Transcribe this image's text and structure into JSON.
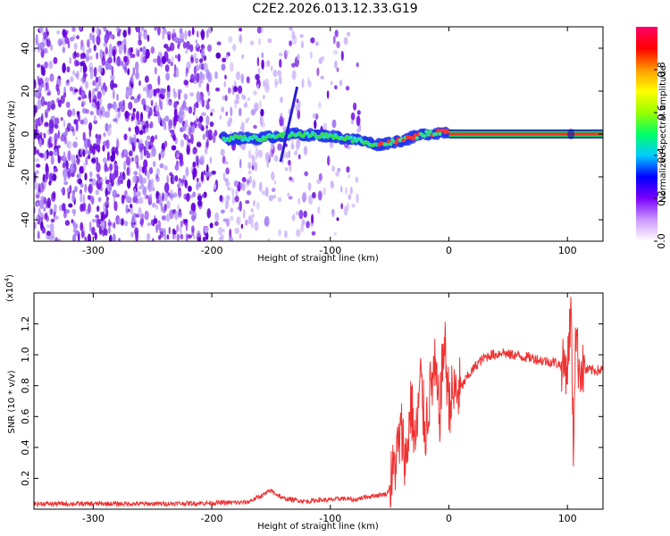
{
  "title": "C2E2.2026.013.12.33.G19",
  "colors": {
    "spectrogram_noise": "#7b2cf0",
    "snr_line": "#ee3333",
    "center_line_core": "#ff2a2a",
    "center_line_halo": "#00dd55"
  },
  "chart_data": [
    {
      "type": "heatmap",
      "name": "spectrogram",
      "xlabel": "Height of straight line (km)",
      "ylabel": "Frequency (Hz)",
      "xlim": [
        -350,
        130
      ],
      "ylim": [
        -50,
        50
      ],
      "xticks": [
        -300,
        -200,
        -100,
        0,
        100
      ],
      "xtick_labels": [
        "-300",
        "-200",
        "-100",
        "0",
        "100"
      ],
      "yticks": [
        -40,
        -20,
        0,
        20,
        40
      ],
      "ytick_labels": [
        "-40",
        "-20",
        "0",
        "20",
        "40"
      ],
      "features": {
        "noise_fades_out_at_km": -80,
        "signal_track": [
          {
            "x": -190,
            "y": -2
          },
          {
            "x": -160,
            "y": -2
          },
          {
            "x": -130,
            "y": 0
          },
          {
            "x": -100,
            "y": -1
          },
          {
            "x": -75,
            "y": -3
          },
          {
            "x": -60,
            "y": -5
          },
          {
            "x": -40,
            "y": -3
          },
          {
            "x": -20,
            "y": 0
          },
          {
            "x": 0,
            "y": 1
          },
          {
            "x": 130,
            "y": 0
          }
        ],
        "diagonal_streak": {
          "x_start": -142,
          "x_end": -128,
          "y_start": -13,
          "y_end": 22
        }
      },
      "colorbar": {
        "label": "Normalized spectral amplitude",
        "range": [
          0,
          1
        ],
        "ticks": [
          0.0,
          0.2,
          0.4,
          0.6,
          0.8
        ],
        "tick_labels": [
          "0.0",
          "0.2",
          "0.4",
          "0.6",
          "0.8"
        ],
        "stops": [
          "#ffffff",
          "#cc99ff",
          "#7a00ff",
          "#0000ff",
          "#00ccff",
          "#00ff66",
          "#99ff00",
          "#ffff00",
          "#ff9900",
          "#ff0000",
          "#ff0066"
        ]
      }
    },
    {
      "type": "line",
      "name": "snr",
      "xlabel": "Height of straight line (km)",
      "ylabel": "SNR (10 * v/v)",
      "yscale_label": "(x10",
      "yscale_exp": "4",
      "yscale_close": ")",
      "xlim": [
        -350,
        130
      ],
      "ylim": [
        0,
        1.4
      ],
      "xticks": [
        -300,
        -200,
        -100,
        0,
        100
      ],
      "xtick_labels": [
        "-300",
        "-200",
        "-100",
        "0",
        "100"
      ],
      "yticks": [
        0.2,
        0.4,
        0.6,
        0.8,
        1.0,
        1.2
      ],
      "ytick_labels": [
        "0.2",
        "0.4",
        "0.6",
        "0.8",
        "1.0",
        "1.2"
      ],
      "series": [
        {
          "name": "SNR",
          "x": [
            -350,
            -300,
            -250,
            -200,
            -170,
            -160,
            -150,
            -140,
            -130,
            -120,
            -110,
            -100,
            -90,
            -80,
            -70,
            -60,
            -52,
            -48,
            -44,
            -40,
            -36,
            -32,
            -28,
            -24,
            -20,
            -16,
            -12,
            -8,
            -4,
            0,
            5,
            10,
            15,
            20,
            25,
            30,
            35,
            40,
            45,
            50,
            55,
            60,
            70,
            80,
            90,
            95,
            100,
            103,
            105,
            107,
            109,
            112,
            120,
            130
          ],
          "y": [
            0.035,
            0.035,
            0.035,
            0.04,
            0.045,
            0.08,
            0.12,
            0.07,
            0.06,
            0.05,
            0.06,
            0.06,
            0.07,
            0.06,
            0.08,
            0.09,
            0.1,
            0.2,
            0.35,
            0.5,
            0.3,
            0.7,
            0.4,
            0.85,
            0.5,
            0.75,
            0.9,
            0.6,
            1.1,
            0.7,
            0.75,
            0.78,
            0.85,
            0.9,
            0.95,
            0.98,
            1.0,
            1.0,
            1.02,
            1.0,
            1.0,
            0.99,
            0.98,
            0.96,
            0.95,
            0.93,
            0.92,
            1.3,
            0.4,
            1.2,
            0.95,
            0.9,
            0.9,
            0.9
          ]
        }
      ]
    }
  ]
}
